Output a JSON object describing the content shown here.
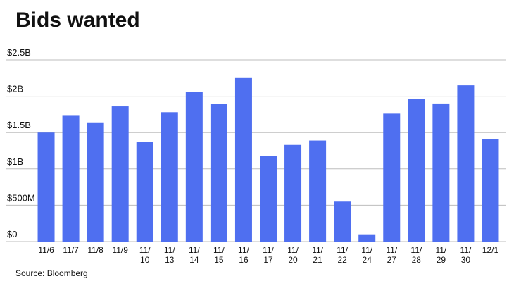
{
  "chart_data": {
    "type": "bar",
    "title": "Bids wanted",
    "source": "Source: Bloomberg",
    "categories": [
      "11/6",
      "11/7",
      "11/8",
      "11/9",
      "11/10",
      "11/13",
      "11/14",
      "11/15",
      "11/16",
      "11/17",
      "11/20",
      "11/21",
      "11/22",
      "11/24",
      "11/27",
      "11/28",
      "11/29",
      "11/30",
      "12/1"
    ],
    "values": [
      1500000000,
      1740000000,
      1640000000,
      1860000000,
      1370000000,
      1780000000,
      2060000000,
      1890000000,
      2250000000,
      1180000000,
      1330000000,
      1390000000,
      550000000,
      100000000,
      1760000000,
      1960000000,
      1900000000,
      2150000000,
      1410000000
    ],
    "color": "#4f6ff0",
    "ylim": [
      0,
      2500000000
    ],
    "yticks": [
      {
        "value": 0,
        "label": "$0"
      },
      {
        "value": 500000000,
        "label": "$500M"
      },
      {
        "value": 1000000000,
        "label": "$1B"
      },
      {
        "value": 1500000000,
        "label": "$1.5B"
      },
      {
        "value": 2000000000,
        "label": "$2B"
      },
      {
        "value": 2500000000,
        "label": "$2.5B"
      }
    ],
    "grid": true
  }
}
